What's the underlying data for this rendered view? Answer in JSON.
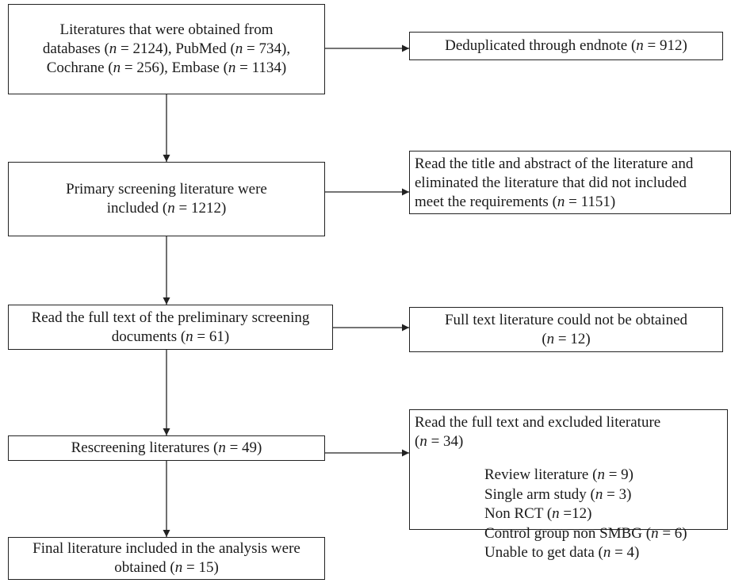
{
  "boxes": {
    "b1": {
      "lines": [
        "Literatures that were obtained from",
        [
          "databases (",
          "n",
          " = 2124), PubMed (",
          "n",
          " = 734),"
        ],
        [
          "Cochrane (",
          "n",
          " = 256), Embase (",
          "n",
          " = 1134)"
        ]
      ]
    },
    "b2": {
      "lines": [
        "Primary screening literature were",
        [
          "included (",
          "n",
          " = 1212)"
        ]
      ]
    },
    "b3": {
      "lines": [
        "Read the full text of the preliminary screening",
        [
          "documents (",
          "n",
          " = 61)"
        ]
      ]
    },
    "b4": {
      "lines": [
        [
          "Rescreening literatures (",
          "n",
          " = 49)"
        ]
      ]
    },
    "b5": {
      "lines": [
        "Final literature included in the analysis were",
        [
          "obtained (",
          "n",
          " = 15)"
        ]
      ]
    },
    "r1": {
      "lines": [
        [
          "Deduplicated through endnote (",
          "n",
          " = 912)"
        ]
      ]
    },
    "r2": {
      "lines": [
        "Read the title and abstract of the literature and",
        "eliminated the literature that did not included",
        [
          "meet the requirements (",
          "n",
          " = 1151)"
        ]
      ]
    },
    "r3": {
      "lines": [
        "Full text literature could not be obtained",
        [
          "(",
          "n",
          " = 12)"
        ]
      ]
    },
    "r4": {
      "header": [
        "Read the full text and excluded literature",
        [
          "(",
          "n",
          " = 34)"
        ]
      ],
      "items": [
        [
          "Review literature (",
          "n",
          " = 9)"
        ],
        [
          "Single arm study (",
          "n",
          " = 3)"
        ],
        [
          "Non RCT (",
          "n",
          " =12)"
        ],
        [
          "Control group non SMBG (",
          "n",
          " = 6)"
        ],
        [
          "Unable to get data (",
          "n",
          " = 4)"
        ]
      ]
    }
  }
}
